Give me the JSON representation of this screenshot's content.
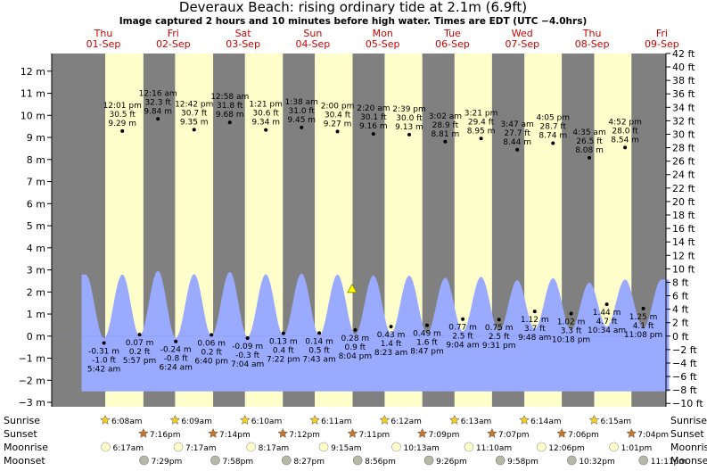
{
  "chart_data": {
    "type": "area",
    "title": "Deveraux Beach: rising  ordinary tide at 2.1m (6.9ft)",
    "subtitle": "Image captured 2 hours and 10 minutes before high water. Times are EDT (UTC −4.0hrs)",
    "y_left_unit": "m",
    "y_right_unit": "ft",
    "ylim_m": [
      -3.2,
      12.8
    ],
    "y_left_ticks": [
      -3,
      -2,
      -1,
      0,
      1,
      2,
      3,
      4,
      5,
      6,
      7,
      8,
      9,
      10,
      11,
      12
    ],
    "y_right_ticks": [
      -10,
      -8,
      -6,
      -4,
      -2,
      0,
      2,
      4,
      6,
      8,
      10,
      12,
      14,
      16,
      18,
      20,
      22,
      24,
      26,
      28,
      30,
      32,
      34,
      36,
      38,
      40,
      42
    ],
    "y_left_labels": [
      "−3 m",
      "−2 m",
      "−1 m",
      "0 m",
      "1 m",
      "2 m",
      "3 m",
      "4 m",
      "5 m",
      "6 m",
      "7 m",
      "8 m",
      "9 m",
      "10 m",
      "11 m",
      "12 m"
    ],
    "y_right_labels": [
      "−10 ft",
      "−8 ft",
      "−6 ft",
      "−4 ft",
      "−2 ft",
      "0 ft",
      "2 ft",
      "4 ft",
      "6 ft",
      "8 ft",
      "10 ft",
      "12 ft",
      "14 ft",
      "16 ft",
      "18 ft",
      "20 ft",
      "22 ft",
      "24 ft",
      "26 ft",
      "28 ft",
      "30 ft",
      "32 ft",
      "34 ft",
      "36 ft",
      "38 ft",
      "40 ft",
      "42 ft"
    ],
    "days": [
      {
        "name": "Thu",
        "date": "01-Sep",
        "sunrise": "6:08am",
        "sunset": "7:16pm",
        "moonrise": "6:17am",
        "moonset": "7:29pm"
      },
      {
        "name": "Fri",
        "date": "02-Sep",
        "sunrise": "6:09am",
        "sunset": "7:14pm",
        "moonrise": "7:17am",
        "moonset": "7:58pm"
      },
      {
        "name": "Sat",
        "date": "03-Sep",
        "sunrise": "6:10am",
        "sunset": "7:12pm",
        "moonrise": "8:17am",
        "moonset": "8:27pm"
      },
      {
        "name": "Sun",
        "date": "04-Sep",
        "sunrise": "6:11am",
        "sunset": "7:11pm",
        "moonrise": "9:15am",
        "moonset": "8:56pm"
      },
      {
        "name": "Mon",
        "date": "05-Sep",
        "sunrise": "6:12am",
        "sunset": "7:09pm",
        "moonrise": "10:13am",
        "moonset": "9:26pm"
      },
      {
        "name": "Tue",
        "date": "06-Sep",
        "sunrise": "6:13am",
        "sunset": "7:07pm",
        "moonrise": "11:10am",
        "moonset": "9:58pm"
      },
      {
        "name": "Wed",
        "date": "07-Sep",
        "sunrise": "6:14am",
        "sunset": "7:06pm",
        "moonrise": "12:06pm",
        "moonset": "10:32pm"
      },
      {
        "name": "Thu",
        "date": "08-Sep",
        "sunrise": "6:15am",
        "sunset": "7:04pm",
        "moonrise": "1:01pm",
        "moonset": "11:11pm"
      },
      {
        "name": "Fri",
        "date": "09-Sep"
      }
    ],
    "tide_events": [
      {
        "day": 0,
        "time": "5:42 am",
        "m": -0.31,
        "ft": "-1.0 ft",
        "m_label": "-0.31 m",
        "type": "low"
      },
      {
        "day": 0,
        "time": "12:01 pm",
        "m": 9.29,
        "ft": "30.5 ft",
        "m_label": "9.29 m",
        "type": "high"
      },
      {
        "day": 0,
        "time": "5:57 pm",
        "m": 0.07,
        "ft": "0.2 ft",
        "m_label": "0.07 m",
        "type": "low"
      },
      {
        "day": 1,
        "time": "12:16 am",
        "m": 9.84,
        "ft": "32.3 ft",
        "m_label": "9.84 m",
        "type": "high"
      },
      {
        "day": 1,
        "time": "6:24 am",
        "m": -0.24,
        "ft": "-0.8 ft",
        "m_label": "-0.24 m",
        "type": "low"
      },
      {
        "day": 1,
        "time": "12:42 pm",
        "m": 9.35,
        "ft": "30.7 ft",
        "m_label": "9.35 m",
        "type": "high"
      },
      {
        "day": 1,
        "time": "6:40 pm",
        "m": 0.06,
        "ft": "0.2 ft",
        "m_label": "0.06 m",
        "type": "low"
      },
      {
        "day": 2,
        "time": "12:58 am",
        "m": 9.68,
        "ft": "31.8 ft",
        "m_label": "9.68 m",
        "type": "high"
      },
      {
        "day": 2,
        "time": "7:04 am",
        "m": -0.09,
        "ft": "-0.3 ft",
        "m_label": "-0.09 m",
        "type": "low"
      },
      {
        "day": 2,
        "time": "1:21 pm",
        "m": 9.34,
        "ft": "30.6 ft",
        "m_label": "9.34 m",
        "type": "high"
      },
      {
        "day": 2,
        "time": "7:22 pm",
        "m": 0.13,
        "ft": "0.4 ft",
        "m_label": "0.13 m",
        "type": "low"
      },
      {
        "day": 3,
        "time": "1:38 am",
        "m": 9.45,
        "ft": "31.0 ft",
        "m_label": "9.45 m",
        "type": "high"
      },
      {
        "day": 3,
        "time": "7:43 am",
        "m": 0.14,
        "ft": "0.5 ft",
        "m_label": "0.14 m",
        "type": "low"
      },
      {
        "day": 3,
        "time": "2:00 pm",
        "m": 9.27,
        "ft": "30.4 ft",
        "m_label": "9.27 m",
        "type": "high"
      },
      {
        "day": 3,
        "time": "8:04 pm",
        "m": 0.28,
        "ft": "0.9 ft",
        "m_label": "0.28 m",
        "type": "low"
      },
      {
        "day": 4,
        "time": "2:20 am",
        "m": 9.16,
        "ft": "30.1 ft",
        "m_label": "9.16 m",
        "type": "high"
      },
      {
        "day": 4,
        "time": "8:23 am",
        "m": 0.43,
        "ft": "1.4 ft",
        "m_label": "0.43 m",
        "type": "low"
      },
      {
        "day": 4,
        "time": "2:39 pm",
        "m": 9.13,
        "ft": "30.0 ft",
        "m_label": "9.13 m",
        "type": "high"
      },
      {
        "day": 4,
        "time": "8:47 pm",
        "m": 0.49,
        "ft": "1.6 ft",
        "m_label": "0.49 m",
        "type": "low"
      },
      {
        "day": 5,
        "time": "3:02 am",
        "m": 8.81,
        "ft": "28.9 ft",
        "m_label": "8.81 m",
        "type": "high"
      },
      {
        "day": 5,
        "time": "9:04 am",
        "m": 0.77,
        "ft": "2.5 ft",
        "m_label": "0.77 m",
        "type": "low"
      },
      {
        "day": 5,
        "time": "3:21 pm",
        "m": 8.95,
        "ft": "29.4 ft",
        "m_label": "8.95 m",
        "type": "high"
      },
      {
        "day": 5,
        "time": "9:31 pm",
        "m": 0.75,
        "ft": "2.5 ft",
        "m_label": "0.75 m",
        "type": "low"
      },
      {
        "day": 6,
        "time": "3:47 am",
        "m": 8.44,
        "ft": "27.7 ft",
        "m_label": "8.44 m",
        "type": "high"
      },
      {
        "day": 6,
        "time": "9:48 am",
        "m": 1.12,
        "ft": "3.7 ft",
        "m_label": "1.12 m",
        "type": "low"
      },
      {
        "day": 6,
        "time": "4:05 pm",
        "m": 8.74,
        "ft": "28.7 ft",
        "m_label": "8.74 m",
        "type": "high"
      },
      {
        "day": 6,
        "time": "10:18 pm",
        "m": 1.02,
        "ft": "3.3 ft",
        "m_label": "1.02 m",
        "type": "low"
      },
      {
        "day": 7,
        "time": "4:35 am",
        "m": 8.08,
        "ft": "26.5 ft",
        "m_label": "8.08 m",
        "type": "high"
      },
      {
        "day": 7,
        "time": "10:34 am",
        "m": 1.44,
        "ft": "4.7 ft",
        "m_label": "1.44 m",
        "type": "low"
      },
      {
        "day": 7,
        "time": "4:52 pm",
        "m": 8.54,
        "ft": "28.0 ft",
        "m_label": "8.54 m",
        "type": "high"
      },
      {
        "day": 7,
        "time": "11:08 pm",
        "m": 1.25,
        "ft": "4.1 ft",
        "m_label": "1.25 m",
        "type": "low"
      }
    ],
    "current_marker": {
      "m": 2.1
    },
    "rows": {
      "sunrise": "Sunrise",
      "sunset": "Sunset",
      "moonrise": "Moonrise",
      "moonset": "Moonset"
    },
    "colors": {
      "day_bg": "#ffffcc",
      "night_bg": "#808080",
      "tide_fill": "#99aaff",
      "day_text": "#cc0000",
      "marker": "#ffff00"
    }
  }
}
